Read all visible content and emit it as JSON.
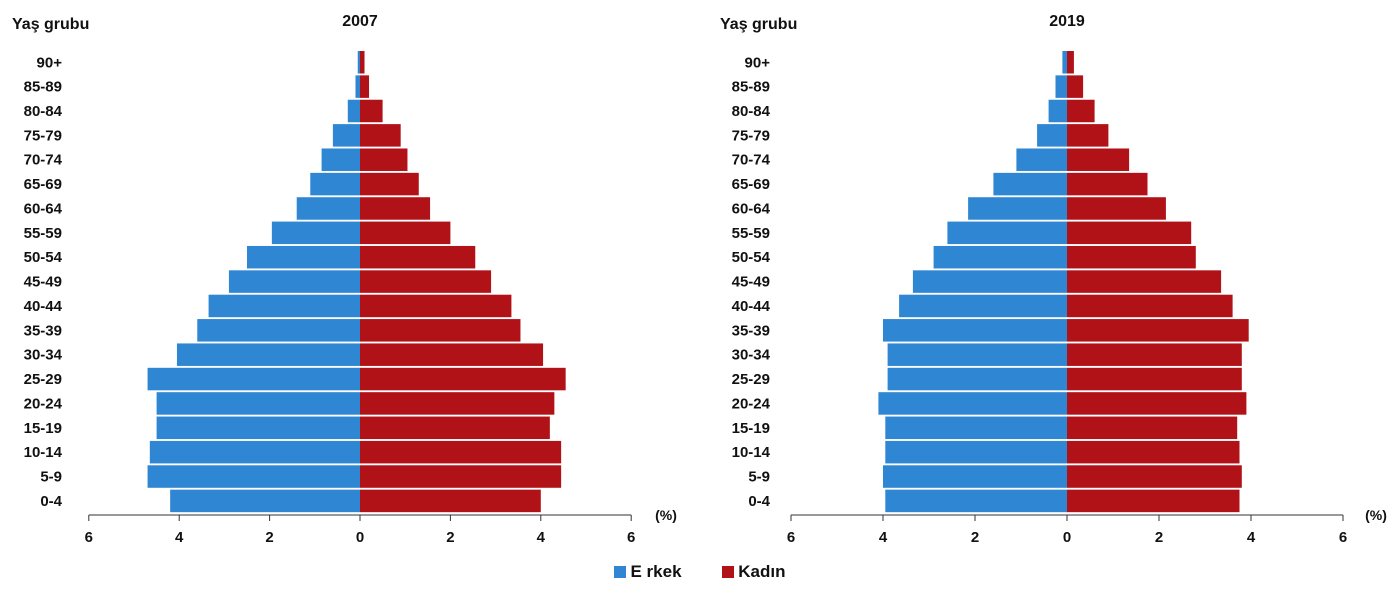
{
  "legend": {
    "male": {
      "label": "E rkek",
      "color": "#2f86d2"
    },
    "female": {
      "label": "Kadın",
      "color": "#b01218"
    }
  },
  "chart_data": [
    {
      "type": "bar",
      "title": "2007",
      "ylabel": "Yaş grubu",
      "xlabel": "(%)",
      "categories": [
        "90+",
        "85-89",
        "80-84",
        "75-79",
        "70-74",
        "65-69",
        "60-64",
        "55-59",
        "50-54",
        "45-49",
        "40-44",
        "35-39",
        "30-34",
        "25-29",
        "20-24",
        "15-19",
        "10-14",
        "5-9",
        "0-4"
      ],
      "series": [
        {
          "name": "E rkek",
          "values": [
            0.05,
            0.1,
            0.27,
            0.6,
            0.85,
            1.1,
            1.4,
            1.95,
            2.5,
            2.9,
            3.35,
            3.6,
            4.05,
            4.7,
            4.5,
            4.5,
            4.65,
            4.7,
            4.2
          ]
        },
        {
          "name": "Kadın",
          "values": [
            0.1,
            0.2,
            0.5,
            0.9,
            1.05,
            1.3,
            1.55,
            2.0,
            2.55,
            2.9,
            3.35,
            3.55,
            4.05,
            4.55,
            4.3,
            4.2,
            4.45,
            4.45,
            4.0
          ]
        }
      ],
      "xlim": [
        -6,
        6
      ],
      "xticks": [
        "6",
        "4",
        "2",
        "0",
        "2",
        "4",
        "6"
      ]
    },
    {
      "type": "bar",
      "title": "2019",
      "ylabel": "Yaş grubu",
      "xlabel": "(%)",
      "categories": [
        "90+",
        "85-89",
        "80-84",
        "75-79",
        "70-74",
        "65-69",
        "60-64",
        "55-59",
        "50-54",
        "45-49",
        "40-44",
        "35-39",
        "30-34",
        "25-29",
        "20-24",
        "15-19",
        "10-14",
        "5-9",
        "0-4"
      ],
      "series": [
        {
          "name": "E rkek",
          "values": [
            0.1,
            0.25,
            0.4,
            0.65,
            1.1,
            1.6,
            2.15,
            2.6,
            2.9,
            3.35,
            3.65,
            4.0,
            3.9,
            3.9,
            4.1,
            3.95,
            3.95,
            4.0,
            3.95
          ]
        },
        {
          "name": "Kadın",
          "values": [
            0.15,
            0.35,
            0.6,
            0.9,
            1.35,
            1.75,
            2.15,
            2.7,
            2.8,
            3.35,
            3.6,
            3.95,
            3.8,
            3.8,
            3.9,
            3.7,
            3.75,
            3.8,
            3.75
          ]
        }
      ],
      "xlim": [
        -6,
        6
      ],
      "xticks": [
        "6",
        "4",
        "2",
        "0",
        "2",
        "4",
        "6"
      ]
    }
  ]
}
